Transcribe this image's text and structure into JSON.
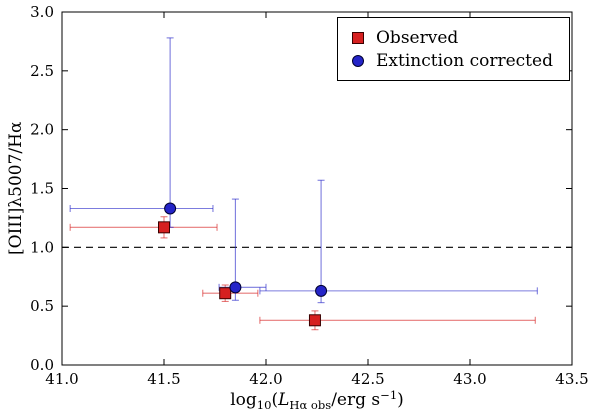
{
  "figure": {
    "background": "#ffffff"
  },
  "chart_data": {
    "type": "scatter",
    "error_bars": true,
    "title": "",
    "xlabel": "log10(L_Ha_obs / erg s^-1)",
    "xlabel_parts": [
      {
        "text": "log",
        "style": "normal"
      },
      {
        "text": "10",
        "style": "sub"
      },
      {
        "text": "(",
        "style": "normal"
      },
      {
        "text": "L",
        "style": "italic"
      },
      {
        "text": "Hα obs",
        "style": "sub"
      },
      {
        "text": "/erg s",
        "style": "normal"
      },
      {
        "text": "−1",
        "style": "sup"
      },
      {
        "text": ")",
        "style": "normal"
      }
    ],
    "ylabel": "[OIII]λ5007/Hα",
    "xlim": [
      41.0,
      43.5
    ],
    "ylim": [
      0.0,
      3.0
    ],
    "xticks": [
      41.0,
      41.5,
      42.0,
      42.5,
      43.0,
      43.5
    ],
    "yticks": [
      0.0,
      0.5,
      1.0,
      1.5,
      2.0,
      2.5,
      3.0
    ],
    "grid": false,
    "reference_line": {
      "y": 1.0,
      "style": "dashed",
      "color": "#000000"
    },
    "legend": {
      "position": "upper right"
    },
    "colors": {
      "red": "#d62020",
      "blue": "#2424c8"
    },
    "series": [
      {
        "name": "Observed",
        "marker": "square",
        "color": "#d62020",
        "edge_color": "#3a0000",
        "points": [
          {
            "x": 41.5,
            "y": 1.17,
            "xerr_minus": 0.46,
            "xerr_plus": 0.26,
            "yerr_minus": 0.09,
            "yerr_plus": 0.09
          },
          {
            "x": 41.8,
            "y": 0.61,
            "xerr_minus": 0.11,
            "xerr_plus": 0.16,
            "yerr_minus": 0.07,
            "yerr_plus": 0.07
          },
          {
            "x": 42.24,
            "y": 0.38,
            "xerr_minus": 0.27,
            "xerr_plus": 1.08,
            "yerr_minus": 0.08,
            "yerr_plus": 0.08
          }
        ]
      },
      {
        "name": "Extinction corrected",
        "marker": "circle",
        "color": "#2424c8",
        "edge_color": "#000030",
        "points": [
          {
            "x": 41.53,
            "y": 1.33,
            "xerr_minus": 0.49,
            "xerr_plus": 0.21,
            "yerr_minus": 0.16,
            "yerr_plus": 1.45
          },
          {
            "x": 41.85,
            "y": 0.66,
            "xerr_minus": 0.08,
            "xerr_plus": 0.15,
            "yerr_minus": 0.11,
            "yerr_plus": 0.75
          },
          {
            "x": 42.27,
            "y": 0.63,
            "xerr_minus": 0.3,
            "xerr_plus": 1.06,
            "yerr_minus": 0.1,
            "yerr_plus": 0.94
          }
        ]
      }
    ]
  }
}
